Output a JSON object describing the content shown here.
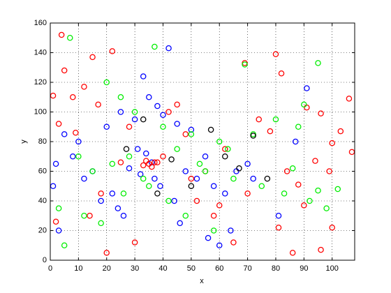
{
  "chart_data": {
    "type": "scatter",
    "xlabel": "x",
    "ylabel": "y",
    "xlim": [
      0,
      108
    ],
    "ylim": [
      0,
      160
    ],
    "xticks": [
      0,
      10,
      20,
      30,
      40,
      50,
      60,
      70,
      80,
      90,
      100
    ],
    "yticks": [
      0,
      20,
      40,
      60,
      80,
      100,
      120,
      140,
      160
    ],
    "grid": true,
    "series": [
      {
        "color": "#0000ff",
        "x": [
          42,
          33,
          91,
          87,
          81,
          60,
          3,
          2,
          10,
          20,
          25,
          30,
          35,
          38,
          40,
          45,
          50,
          55,
          28,
          32,
          36,
          34,
          31,
          37,
          39,
          22,
          18,
          15,
          12,
          8,
          5,
          48,
          52,
          58,
          62,
          66,
          70,
          44,
          26,
          24,
          46,
          56,
          64,
          72,
          1
        ],
        "values": [
          143,
          124,
          116,
          80,
          30,
          10,
          20,
          65,
          80,
          90,
          100,
          95,
          110,
          104,
          98,
          92,
          88,
          70,
          62,
          58,
          66,
          72,
          75,
          55,
          50,
          45,
          40,
          60,
          55,
          70,
          85,
          60,
          55,
          50,
          45,
          60,
          65,
          40,
          30,
          35,
          25,
          15,
          20,
          55,
          50
        ]
      },
      {
        "color": "#ff0000",
        "x": [
          4,
          22,
          15,
          5,
          69,
          80,
          82,
          91,
          96,
          100,
          106,
          103,
          107,
          99,
          94,
          88,
          90,
          81,
          84,
          78,
          74,
          96,
          86,
          100,
          58,
          62,
          45,
          25,
          12,
          8,
          2,
          1,
          3,
          17,
          9,
          20,
          30,
          40,
          50,
          60,
          70,
          65,
          55,
          33,
          35,
          37,
          36,
          34,
          38,
          28,
          18,
          48,
          52,
          42,
          14
        ],
        "values": [
          152,
          141,
          137,
          128,
          133,
          139,
          126,
          103,
          99,
          79,
          109,
          87,
          73,
          60,
          67,
          51,
          37,
          22,
          60,
          87,
          95,
          7,
          5,
          22,
          30,
          75,
          105,
          66,
          117,
          110,
          26,
          111,
          92,
          105,
          86,
          5,
          12,
          70,
          55,
          37,
          45,
          12,
          60,
          64,
          65,
          66,
          63,
          67,
          66,
          90,
          45,
          85,
          40,
          100,
          30
        ]
      },
      {
        "color": "#00ee00",
        "x": [
          37,
          7,
          95,
          69,
          102,
          88,
          95,
          5,
          12,
          20,
          25,
          30,
          40,
          50,
          60,
          22,
          28,
          45,
          55,
          65,
          75,
          83,
          92,
          98,
          10,
          15,
          35,
          42,
          48,
          58,
          3,
          18,
          26,
          33,
          53,
          63,
          72,
          80,
          86,
          90
        ],
        "values": [
          144,
          150,
          133,
          132,
          48,
          90,
          47,
          10,
          30,
          120,
          110,
          100,
          90,
          85,
          80,
          65,
          70,
          75,
          60,
          55,
          50,
          45,
          40,
          35,
          70,
          60,
          50,
          40,
          30,
          20,
          35,
          25,
          45,
          55,
          65,
          75,
          85,
          95,
          62,
          105
        ]
      },
      {
        "color": "#000000",
        "x": [
          27,
          43,
          57,
          67,
          77,
          33,
          38,
          50,
          62,
          72
        ],
        "values": [
          75,
          68,
          88,
          62,
          55,
          95,
          45,
          50,
          70,
          84
        ]
      }
    ]
  }
}
